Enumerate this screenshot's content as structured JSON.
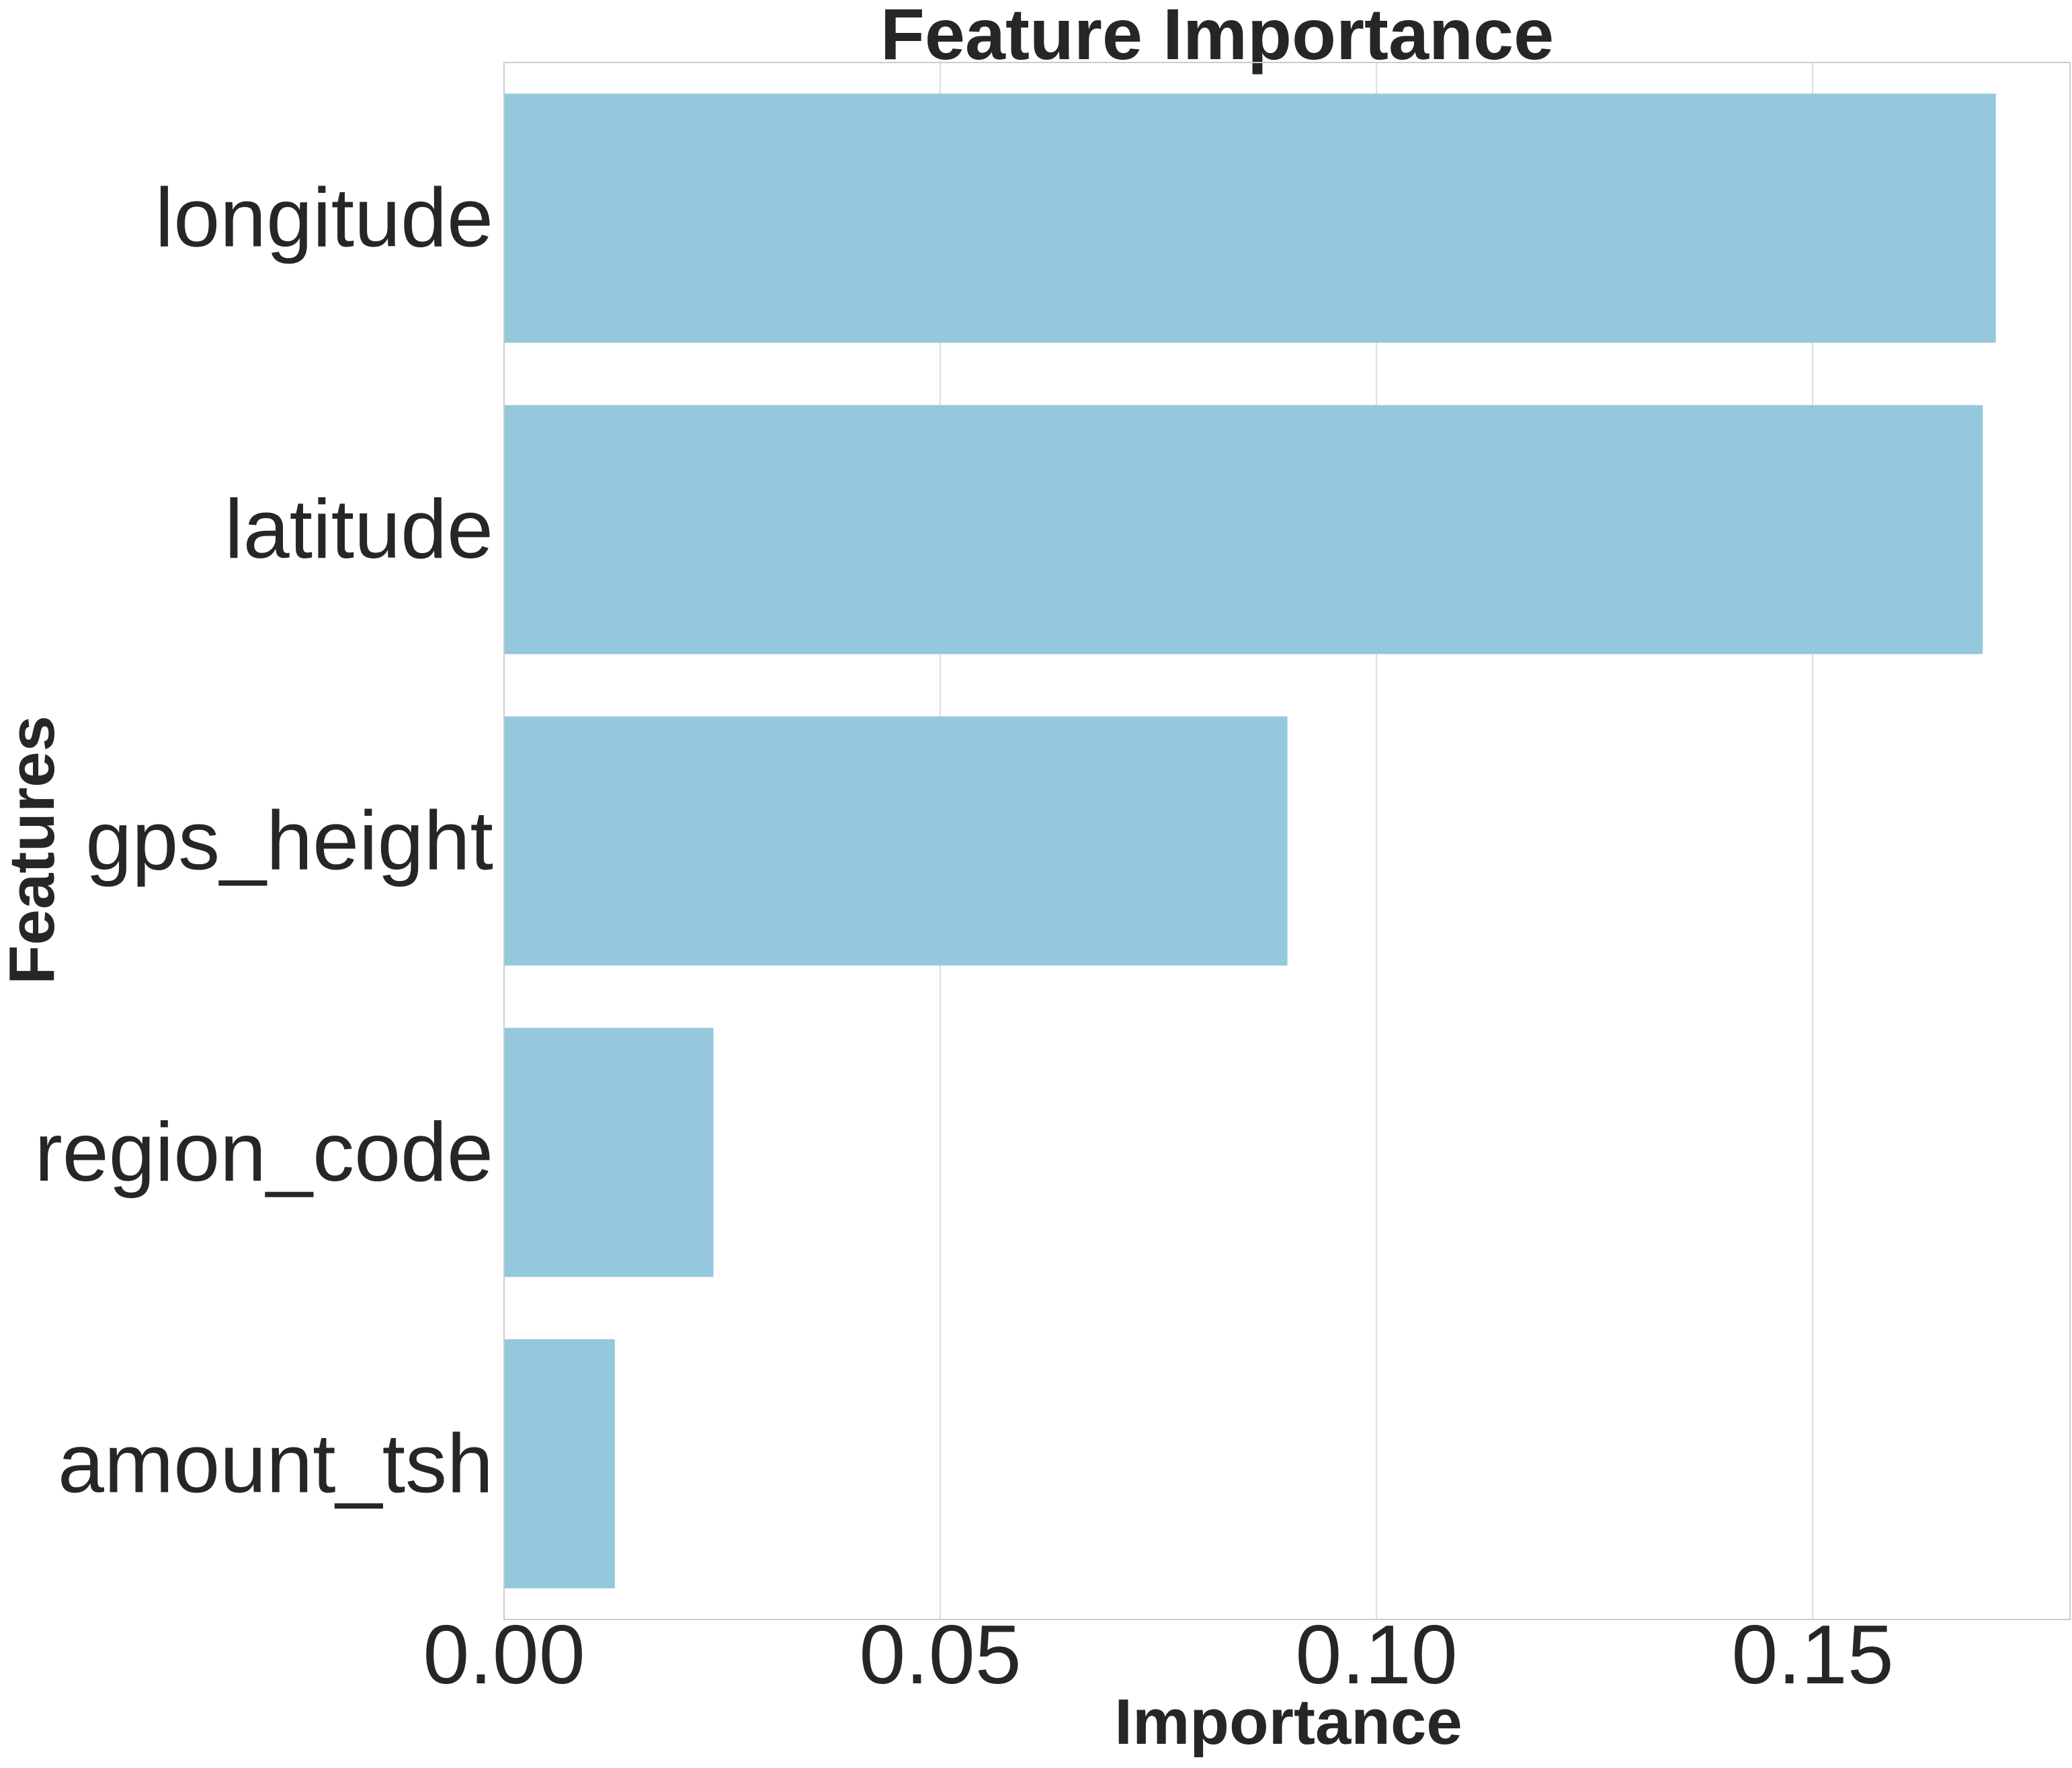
{
  "chart_data": {
    "type": "bar",
    "orientation": "horizontal",
    "title": "Feature Importance",
    "xlabel": "Importance",
    "ylabel": "Features",
    "categories": [
      "longitude",
      "latitude",
      "gps_height",
      "region_code",
      "amount_tsh"
    ],
    "values": [
      0.171,
      0.1695,
      0.0898,
      0.024,
      0.0127
    ],
    "xlim": [
      0,
      0.1795
    ],
    "xticks": [
      "0.00",
      "0.05",
      "0.10",
      "0.15"
    ],
    "xtick_values": [
      0,
      0.05,
      0.1,
      0.15
    ],
    "grid": true,
    "legend": "none",
    "colors": {
      "bar": "#95c8dd",
      "grid": "#dcdcdc",
      "text": "#262626",
      "spine": "#cccccc"
    }
  }
}
